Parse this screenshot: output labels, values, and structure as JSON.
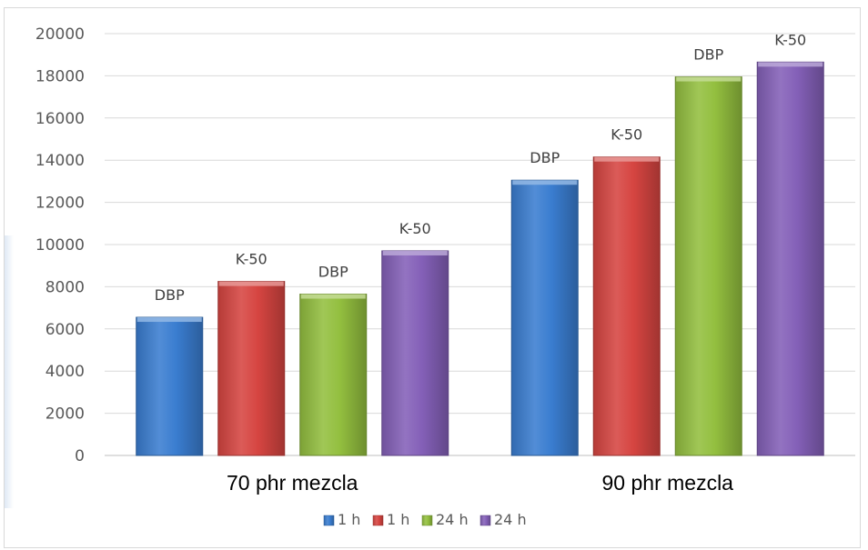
{
  "chart_data": {
    "type": "bar",
    "title": "",
    "xlabel": "",
    "ylabel": "",
    "ylim": [
      0,
      20000
    ],
    "y_ticks": [
      0,
      2000,
      4000,
      6000,
      8000,
      10000,
      12000,
      14000,
      16000,
      18000,
      20000
    ],
    "grid": true,
    "legend_position": "bottom",
    "categories": [
      "70 phr mezcla",
      "90 phr mezcla"
    ],
    "series": [
      {
        "name": "1 h",
        "color": "#3a7dd0",
        "values": [
          6550,
          13050
        ],
        "data_labels": [
          "DBP",
          "DBP"
        ]
      },
      {
        "name": "1 h",
        "color": "#d64541",
        "values": [
          8250,
          14150
        ],
        "data_labels": [
          "K-50",
          "K-50"
        ]
      },
      {
        "name": "24 h",
        "color": "#93bf3f",
        "values": [
          7650,
          17950
        ],
        "data_labels": [
          "DBP",
          "DBP"
        ]
      },
      {
        "name": "24 h",
        "color": "#8460b8",
        "values": [
          9700,
          18650
        ],
        "data_labels": [
          "K-50",
          "K-50"
        ]
      }
    ]
  }
}
